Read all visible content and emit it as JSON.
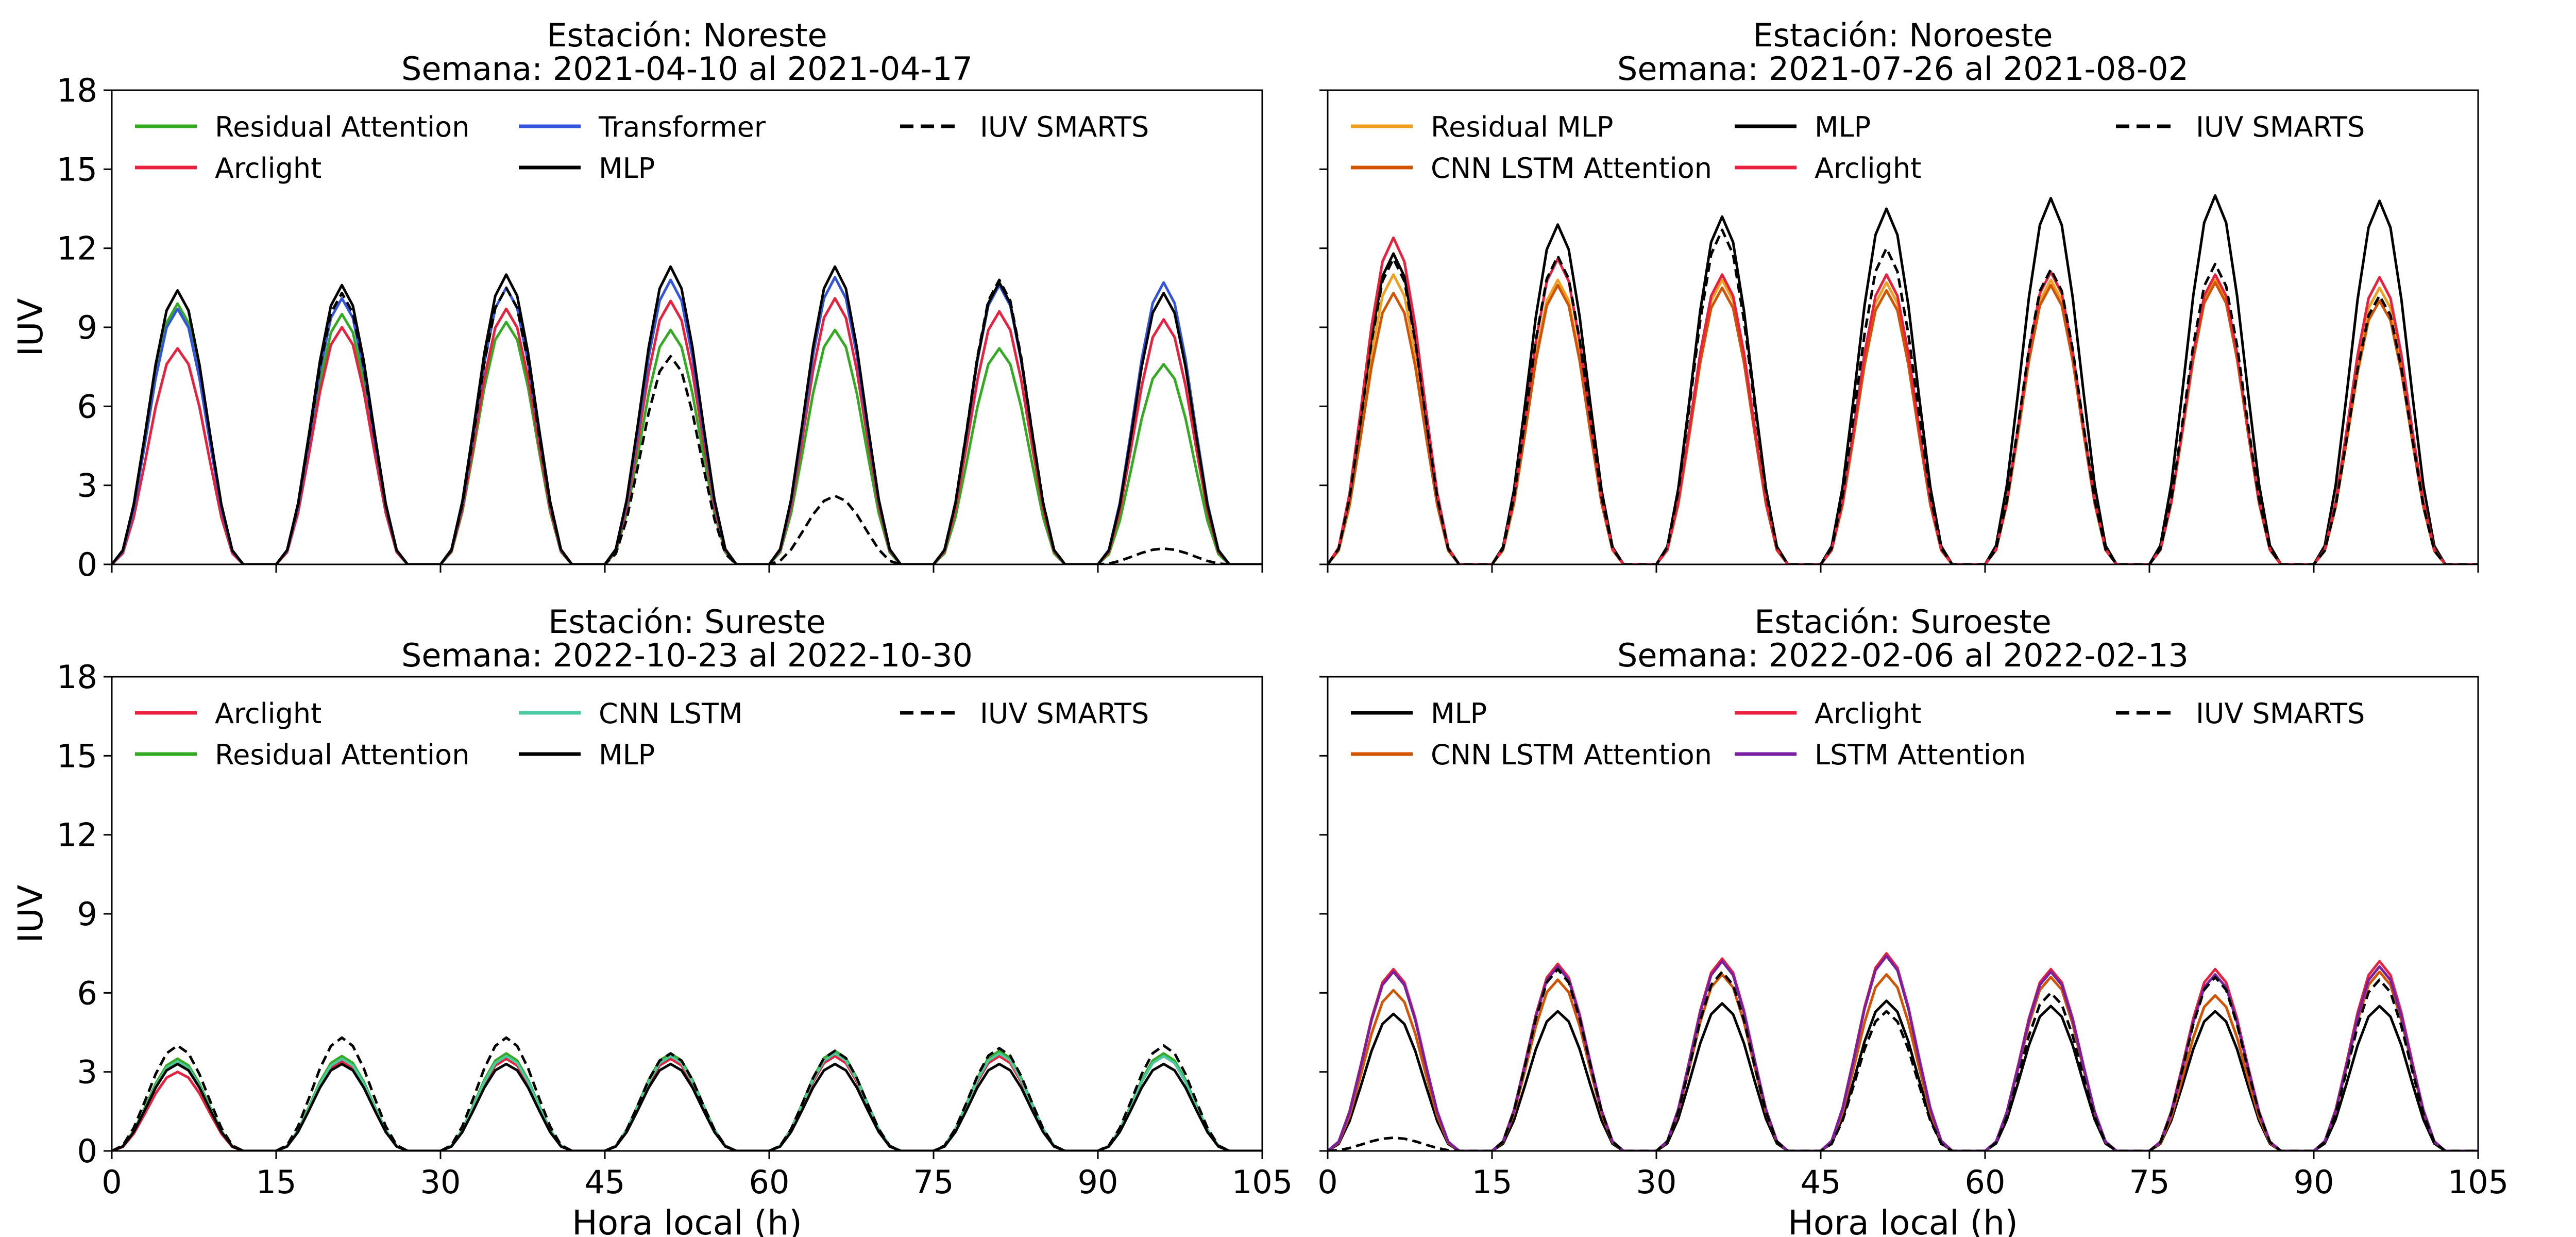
{
  "chart_data": [
    {
      "type": "line",
      "title": "Estación: Noreste",
      "subtitle": "Semana: 2021-04-10 al 2021-04-17",
      "xlabel": "",
      "ylabel": "IUV",
      "xlim": [
        0,
        105
      ],
      "ylim": [
        0,
        18
      ],
      "xticks": [
        0,
        15,
        30,
        45,
        60,
        75,
        90,
        105
      ],
      "yticks": [
        0,
        3,
        6,
        9,
        12,
        15,
        18
      ],
      "legend_placement": "upper-left, 3 columns",
      "peak_hours": [
        7,
        22,
        37,
        52,
        67,
        82,
        97
      ],
      "series": [
        {
          "name": "Residual Attention",
          "color": "#33aa22",
          "style": "solid",
          "peaks": [
            9.9,
            9.5,
            9.2,
            8.9,
            8.9,
            8.2,
            7.6
          ]
        },
        {
          "name": "Arclight",
          "color": "#e8213f",
          "style": "solid",
          "peaks": [
            8.2,
            9.0,
            9.7,
            10.0,
            10.1,
            9.6,
            9.3
          ]
        },
        {
          "name": "Transformer",
          "color": "#3355dd",
          "style": "solid",
          "peaks": [
            9.7,
            10.1,
            10.5,
            10.8,
            10.9,
            10.6,
            10.7
          ]
        },
        {
          "name": "MLP",
          "color": "#000000",
          "style": "solid",
          "peaks": [
            10.4,
            10.6,
            11.0,
            11.3,
            11.3,
            10.7,
            10.3
          ]
        },
        {
          "name": "IUV SMARTS",
          "color": "#000000",
          "style": "dashed",
          "peaks": [
            10.4,
            10.3,
            10.5,
            7.9,
            2.6,
            10.8,
            0.6
          ]
        }
      ]
    },
    {
      "type": "line",
      "title": "Estación: Noroeste",
      "subtitle": "Semana: 2021-07-26 al 2021-08-02",
      "xlabel": "",
      "ylabel": "",
      "xlim": [
        0,
        105
      ],
      "ylim": [
        0,
        18
      ],
      "xticks": [
        0,
        15,
        30,
        45,
        60,
        75,
        90,
        105
      ],
      "yticks": [
        0,
        3,
        6,
        9,
        12,
        15,
        18
      ],
      "legend_placement": "upper-left, 3 columns",
      "peak_hours": [
        7,
        22,
        37,
        52,
        67,
        82,
        97
      ],
      "series": [
        {
          "name": "Residual MLP",
          "color": "#f0a020",
          "style": "solid",
          "peaks": [
            11.0,
            10.8,
            10.8,
            10.7,
            10.8,
            10.8,
            10.5
          ]
        },
        {
          "name": "CNN LSTM Attention",
          "color": "#d35400",
          "style": "solid",
          "peaks": [
            10.3,
            10.6,
            10.5,
            10.4,
            10.6,
            10.7,
            10.0
          ]
        },
        {
          "name": "MLP",
          "color": "#000000",
          "style": "solid",
          "peaks": [
            11.8,
            12.9,
            13.2,
            13.5,
            13.9,
            14.0,
            13.8
          ]
        },
        {
          "name": "Arclight",
          "color": "#e8213f",
          "style": "solid",
          "peaks": [
            12.4,
            11.6,
            11.0,
            11.0,
            11.1,
            11.0,
            10.9
          ]
        },
        {
          "name": "IUV SMARTS",
          "color": "#000000",
          "style": "dashed",
          "peaks": [
            11.6,
            11.7,
            12.7,
            12.0,
            11.2,
            11.4,
            10.2
          ]
        }
      ]
    },
    {
      "type": "line",
      "title": "Estación: Sureste",
      "subtitle": "Semana: 2022-10-23 al 2022-10-30",
      "xlabel": "Hora local (h)",
      "ylabel": "IUV",
      "xlim": [
        0,
        105
      ],
      "ylim": [
        0,
        18
      ],
      "xticks": [
        0,
        15,
        30,
        45,
        60,
        75,
        90,
        105
      ],
      "yticks": [
        0,
        3,
        6,
        9,
        12,
        15,
        18
      ],
      "legend_placement": "upper-left, 3 columns",
      "peak_hours": [
        7,
        22,
        37,
        52,
        67,
        82,
        97
      ],
      "series": [
        {
          "name": "Arclight",
          "color": "#e8213f",
          "style": "solid",
          "peaks": [
            3.0,
            3.4,
            3.5,
            3.5,
            3.6,
            3.6,
            3.6
          ]
        },
        {
          "name": "Residual Attention",
          "color": "#33aa22",
          "style": "solid",
          "peaks": [
            3.5,
            3.6,
            3.7,
            3.7,
            3.8,
            3.8,
            3.7
          ]
        },
        {
          "name": "CNN LSTM",
          "color": "#48c9a0",
          "style": "solid",
          "peaks": [
            3.4,
            3.5,
            3.6,
            3.6,
            3.7,
            3.7,
            3.6
          ]
        },
        {
          "name": "MLP",
          "color": "#000000",
          "style": "solid",
          "peaks": [
            3.3,
            3.3,
            3.3,
            3.3,
            3.3,
            3.3,
            3.3
          ]
        },
        {
          "name": "IUV SMARTS",
          "color": "#000000",
          "style": "dashed",
          "peaks": [
            4.0,
            4.3,
            4.3,
            3.7,
            3.8,
            3.9,
            4.0
          ]
        }
      ]
    },
    {
      "type": "line",
      "title": "Estación: Suroeste",
      "subtitle": "Semana: 2022-02-06 al 2022-02-13",
      "xlabel": "Hora local (h)",
      "ylabel": "",
      "xlim": [
        0,
        105
      ],
      "ylim": [
        0,
        18
      ],
      "xticks": [
        0,
        15,
        30,
        45,
        60,
        75,
        90,
        105
      ],
      "yticks": [
        0,
        3,
        6,
        9,
        12,
        15,
        18
      ],
      "legend_placement": "upper-left, 3 columns",
      "peak_hours": [
        7,
        22,
        37,
        52,
        67,
        82,
        97
      ],
      "series": [
        {
          "name": "MLP",
          "color": "#000000",
          "style": "solid",
          "peaks": [
            5.2,
            5.3,
            5.6,
            5.7,
            5.5,
            5.3,
            5.5
          ]
        },
        {
          "name": "CNN LSTM Attention",
          "color": "#d35400",
          "style": "solid",
          "peaks": [
            6.1,
            6.5,
            6.7,
            6.7,
            6.6,
            5.9,
            6.8
          ]
        },
        {
          "name": "Arclight",
          "color": "#e8213f",
          "style": "solid",
          "peaks": [
            6.9,
            7.1,
            7.3,
            7.5,
            6.9,
            6.9,
            7.2
          ]
        },
        {
          "name": "LSTM Attention",
          "color": "#7a1fa2",
          "style": "solid",
          "peaks": [
            6.8,
            7.0,
            7.2,
            7.4,
            6.8,
            6.7,
            7.0
          ]
        },
        {
          "name": "IUV SMARTS",
          "color": "#000000",
          "style": "dashed",
          "peaks": [
            0.5,
            6.9,
            6.8,
            5.3,
            6.0,
            6.6,
            6.5
          ]
        }
      ]
    }
  ]
}
